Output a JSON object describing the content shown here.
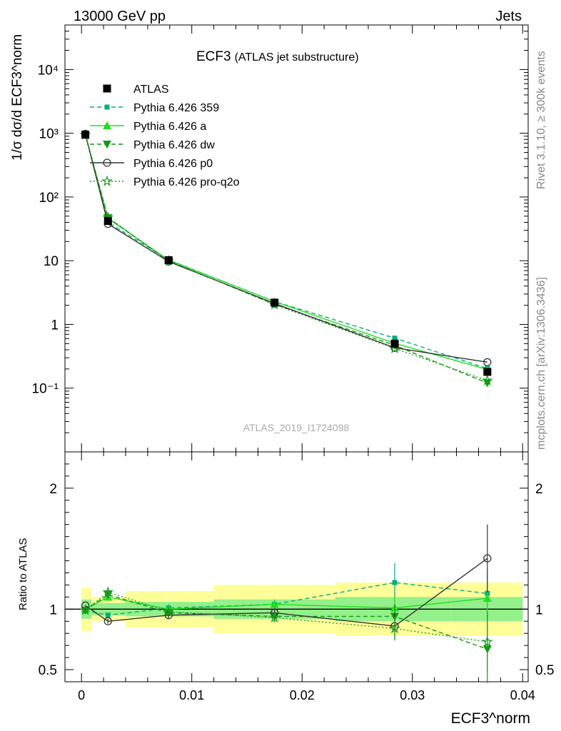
{
  "header": {
    "left": "13000 GeV pp",
    "right": "Jets"
  },
  "side_text": {
    "rivet": "Rivet 3.1.10, ≥ 300k events",
    "mcplots": "mcplots.cern.ch [arXiv:1306.3436]"
  },
  "chart_data": {
    "type": "line",
    "title": "ECF3",
    "subtitle": "(ATLAS jet substructure)",
    "analysis_id": "ATLAS_2019_I1724098",
    "xlabel": "ECF3^norm",
    "ylabel": "1/σ dσ/d ECF3^norm",
    "ratio_ylabel": "Ratio to ATLAS",
    "xlim": [
      -0.0015,
      0.0405
    ],
    "ylim": [
      0.01,
      50000
    ],
    "ratio_ylim": [
      0.4,
      2.3
    ],
    "x_ticks": [
      "0",
      "0.01",
      "0.02",
      "0.03",
      "0.04"
    ],
    "y_ticks": [
      "10⁻¹",
      "1",
      "10",
      "10²",
      "10³",
      "10⁴"
    ],
    "ratio_ticks": [
      "0.5",
      "1",
      "2"
    ],
    "x": [
      0.00035,
      0.0024,
      0.0079,
      0.0175,
      0.0284,
      0.0368
    ],
    "bin_edges": [
      0,
      0.0009,
      0.004,
      0.012,
      0.023,
      0.0335,
      0.04
    ],
    "data": {
      "name": "ATLAS",
      "values": [
        950,
        42,
        10.2,
        2.2,
        0.5,
        0.18
      ],
      "band_inner": [
        0.08,
        0.05,
        0.06,
        0.08,
        0.1,
        0.1
      ],
      "band_outer": [
        0.18,
        0.1,
        0.15,
        0.2,
        0.22,
        0.22
      ]
    },
    "series": [
      {
        "name": "Pythia 6.426 359",
        "color": "#00b07a",
        "dash": "6,4",
        "marker": "square-small",
        "ratio": [
          0.99,
          0.95,
          1.01,
          1.04,
          1.22,
          1.13
        ],
        "ratio_err": [
          0.01,
          0.02,
          0.03,
          0.04,
          0.16,
          0.2
        ]
      },
      {
        "name": "Pythia 6.426 a",
        "color": "#22dd22",
        "dash": "",
        "marker": "triangle-up",
        "ratio": [
          1.0,
          1.1,
          1.0,
          1.04,
          1.01,
          1.09
        ],
        "ratio_err": [
          0.01,
          0.02,
          0.03,
          0.04,
          0.1,
          0.2
        ]
      },
      {
        "name": "Pythia 6.426 dw",
        "color": "#119911",
        "dash": "6,4",
        "marker": "triangle-down",
        "ratio": [
          0.99,
          1.12,
          0.97,
          0.94,
          0.94,
          0.67
        ],
        "ratio_err": [
          0.01,
          0.02,
          0.03,
          0.04,
          0.1,
          0.28
        ]
      },
      {
        "name": "Pythia 6.426 p0",
        "color": "#333333",
        "dash": "",
        "marker": "circle-open",
        "ratio": [
          1.03,
          0.9,
          0.95,
          0.97,
          0.86,
          1.42
        ],
        "ratio_err": [
          0.01,
          0.02,
          0.03,
          0.04,
          0.11,
          0.28
        ]
      },
      {
        "name": "Pythia 6.426 pro-q2o",
        "color": "#1f9a1f",
        "dash": "2,3",
        "marker": "star",
        "ratio": [
          0.99,
          1.14,
          0.98,
          0.93,
          0.84,
          0.73
        ],
        "ratio_err": [
          0.01,
          0.02,
          0.03,
          0.04,
          0.1,
          0.25
        ]
      }
    ]
  }
}
